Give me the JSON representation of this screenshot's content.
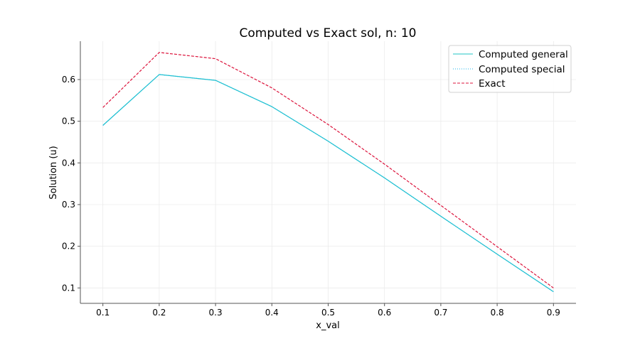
{
  "chart_data": {
    "type": "line",
    "title": "Computed vs Exact sol, n: 10",
    "xlabel": "x_val",
    "ylabel": "Solution (u)",
    "xlim": [
      0.06,
      0.94
    ],
    "ylim": [
      0.063,
      0.692
    ],
    "xticks": [
      0.1,
      0.2,
      0.3,
      0.4,
      0.5,
      0.6,
      0.7,
      0.8,
      0.9
    ],
    "xtick_labels": [
      "0.1",
      "0.2",
      "0.3",
      "0.4",
      "0.5",
      "0.6",
      "0.7",
      "0.8",
      "0.9"
    ],
    "yticks": [
      0.1,
      0.2,
      0.3,
      0.4,
      0.5,
      0.6
    ],
    "ytick_labels": [
      "0.1",
      "0.2",
      "0.3",
      "0.4",
      "0.5",
      "0.6"
    ],
    "grid": true,
    "legend_position": "top-right",
    "x": [
      0.1,
      0.2,
      0.3,
      0.4,
      0.5,
      0.6,
      0.7,
      0.8,
      0.9
    ],
    "series": [
      {
        "name": "Computed general",
        "color": "#20c5c5",
        "style": "solid",
        "values": [
          0.49,
          0.612,
          0.598,
          0.535,
          0.452,
          0.364,
          0.272,
          0.181,
          0.091
        ]
      },
      {
        "name": "Computed special",
        "color": "#1eb4ee",
        "style": "dotted",
        "values": [
          0.49,
          0.612,
          0.598,
          0.535,
          0.452,
          0.364,
          0.272,
          0.181,
          0.091
        ]
      },
      {
        "name": "Exact",
        "color": "#dc143c",
        "style": "dashed",
        "values": [
          0.533,
          0.665,
          0.65,
          0.58,
          0.492,
          0.397,
          0.298,
          0.199,
          0.1
        ]
      }
    ]
  }
}
